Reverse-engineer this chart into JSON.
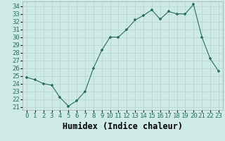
{
  "x": [
    0,
    1,
    2,
    3,
    4,
    5,
    6,
    7,
    8,
    9,
    10,
    11,
    12,
    13,
    14,
    15,
    16,
    17,
    18,
    19,
    20,
    21,
    22,
    23
  ],
  "y": [
    24.8,
    24.5,
    24.0,
    23.8,
    22.2,
    21.1,
    21.8,
    23.0,
    26.0,
    28.3,
    30.0,
    30.0,
    31.0,
    32.2,
    32.8,
    33.5,
    32.3,
    33.3,
    33.0,
    33.0,
    34.2,
    30.0,
    27.2,
    25.6
  ],
  "title": "",
  "xlabel": "Humidex (Indice chaleur)",
  "ylabel": "",
  "ylim": [
    20.6,
    34.6
  ],
  "xlim": [
    -0.5,
    23.5
  ],
  "line_color": "#2a6e62",
  "marker_color": "#2a6e62",
  "bg_color": "#ceeae7",
  "grid_color": "#b8d8d4",
  "tick_label_fontsize": 6.5,
  "xlabel_fontsize": 8.5,
  "yticks": [
    21,
    22,
    23,
    24,
    25,
    26,
    27,
    28,
    29,
    30,
    31,
    32,
    33,
    34
  ],
  "xticks": [
    0,
    1,
    2,
    3,
    4,
    5,
    6,
    7,
    8,
    9,
    10,
    11,
    12,
    13,
    14,
    15,
    16,
    17,
    18,
    19,
    20,
    21,
    22,
    23
  ]
}
